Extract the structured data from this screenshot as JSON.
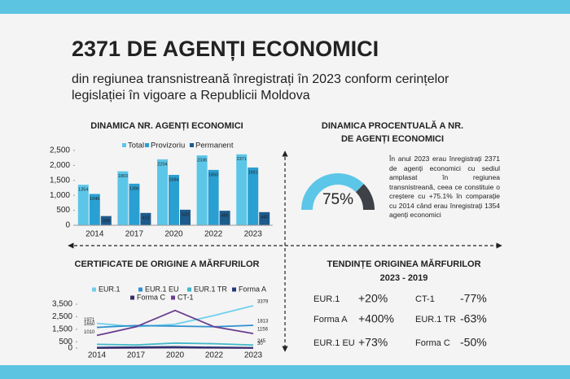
{
  "header": {
    "title": "2371 DE AGENȚI ECONOMICI",
    "subtitle": [
      "din regiunea transnistreană înregistrați în 2023 conform cerințelor",
      "legislației în vigoare a Republicii Moldova"
    ]
  },
  "chart_data": [
    {
      "type": "bar",
      "title": "DINAMICA NR. AGENȚI ECONOMICI",
      "categories": [
        "2014",
        "2017",
        "2020",
        "2022",
        "2023"
      ],
      "series": [
        {
          "name": "Total",
          "color": "#5cc6e8",
          "values": [
            1354,
            1803,
            2204,
            2336,
            2371
          ]
        },
        {
          "name": "Provizoriu",
          "color": "#2a9fd2",
          "values": [
            1046,
            1390,
            1684,
            1850,
            1931
          ]
        },
        {
          "name": "Permanent",
          "color": "#1d5b8c",
          "values": [
            308,
            413,
            520,
            486,
            440
          ]
        }
      ],
      "ylim": [
        0,
        2500
      ],
      "yticks": [
        0,
        500,
        {
          "value": 1000,
          "label": "1,000"
        },
        {
          "value": 1500,
          "label": "1,500"
        },
        {
          "value": 2000,
          "label": "2,000"
        },
        {
          "value": 2500,
          "label": "2,500"
        }
      ]
    },
    {
      "type": "gauge",
      "title": [
        "DINAMICA PROCENTUALĂ A NR.",
        "DE AGENȚI ECONOMICI"
      ],
      "values": [
        75
      ],
      "value_labels": [
        "75%"
      ],
      "ylim": [
        0,
        100
      ],
      "color": "#5cc6e8",
      "text": "În anul 2023 erau înregistrați 2371 de agenți economici cu sediul amplasat în regiunea transnistreană, ceea ce constituie o creștere cu +75.1% în comparație cu 2014 când erau înregistrați 1354 agenți economici"
    },
    {
      "type": "line",
      "title": "CERTIFICATE DE ORIGINE A MĂRFURILOR",
      "categories": [
        "2014",
        "2017",
        "2020",
        "2022",
        "2023"
      ],
      "series": [
        {
          "name": "EUR.1",
          "color": "#6fd0ec",
          "values": [
            1971,
            1700,
            1900,
            2600,
            3379
          ]
        },
        {
          "name": "EUR.1 EU",
          "color": "#2e8fcf",
          "values": [
            1650,
            1800,
            1750,
            1700,
            1813
          ]
        },
        {
          "name": "EUR.1 TR",
          "color": "#3fb8c8",
          "values": [
            300,
            250,
            400,
            350,
            245
          ]
        },
        {
          "name": "Forma A",
          "color": "#1f3a78",
          "values": [
            50,
            80,
            100,
            60,
            30
          ]
        },
        {
          "name": "Forma C",
          "color": "#3a2a6a",
          "values": [
            0,
            20,
            30,
            20,
            0
          ]
        },
        {
          "name": "CT-1",
          "color": "#6a3d8f",
          "values": [
            1010,
            1700,
            3000,
            1700,
            1156
          ]
        }
      ],
      "ylim": [
        0,
        3500
      ],
      "yticks": [
        0,
        500,
        {
          "value": 1500,
          "label": "1,500"
        },
        {
          "value": 2500,
          "label": "2,500"
        },
        {
          "value": 3500,
          "label": "3,500"
        }
      ]
    }
  ],
  "trends": {
    "title": [
      "TENDINȚE ORIGINEA MĂRFURILOR",
      "2023 - 2019"
    ],
    "items": [
      {
        "name": "EUR.1",
        "change": "+20%"
      },
      {
        "name": "CT-1",
        "change": "-77%"
      },
      {
        "name": "Forma A",
        "change": "+400%"
      },
      {
        "name": "EUR.1 TR",
        "change": "-63%"
      },
      {
        "name": "EUR.1 EU",
        "change": "+73%"
      },
      {
        "name": "Forma C",
        "change": "-50%"
      }
    ]
  }
}
